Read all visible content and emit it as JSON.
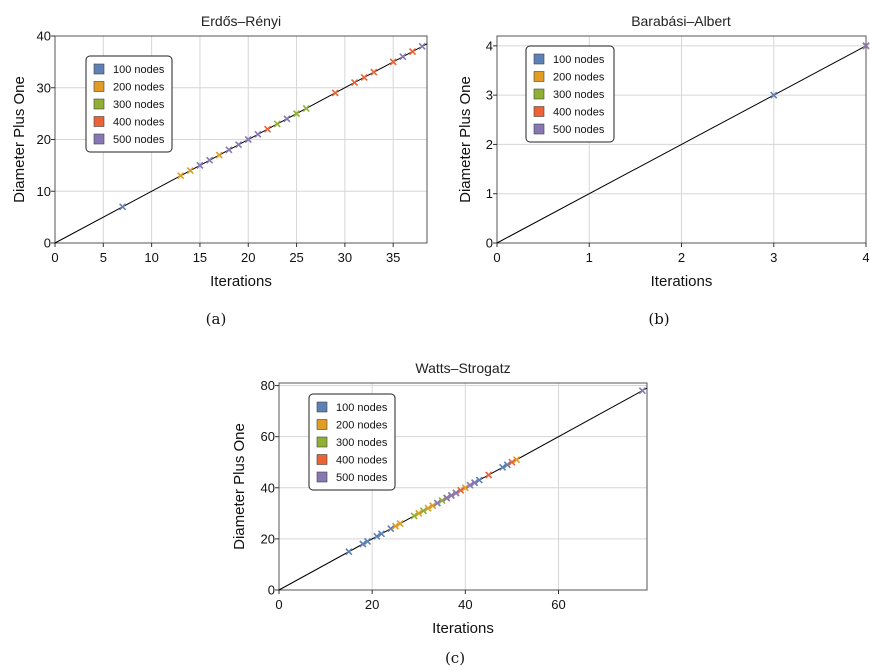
{
  "chart_data": [
    {
      "type": "scatter",
      "title": "Erdős–Rényi",
      "xlabel": "Iterations",
      "ylabel": "Diameter Plus One",
      "caption": "(a)",
      "xlim": [
        0,
        38.5
      ],
      "ylim": [
        0,
        40
      ],
      "xticks": [
        0,
        5,
        10,
        15,
        20,
        25,
        30,
        35
      ],
      "yticks": [
        0,
        10,
        20,
        30,
        40
      ],
      "grid": true,
      "reference_line": "y = x",
      "legend_position": "top-left",
      "series": [
        {
          "name": "100 nodes",
          "x": [
            7
          ],
          "y": [
            7
          ]
        },
        {
          "name": "200 nodes",
          "x": [
            13,
            14,
            17
          ],
          "y": [
            13,
            14,
            17
          ]
        },
        {
          "name": "300 nodes",
          "x": [
            23,
            25,
            26
          ],
          "y": [
            23,
            25,
            26
          ]
        },
        {
          "name": "400 nodes",
          "x": [
            22,
            29,
            31,
            32,
            33,
            35,
            37
          ],
          "y": [
            22,
            29,
            31,
            32,
            33,
            35,
            37
          ]
        },
        {
          "name": "500 nodes",
          "x": [
            15,
            16,
            18,
            19,
            20,
            21,
            24,
            36,
            38
          ],
          "y": [
            15,
            16,
            18,
            19,
            20,
            21,
            24,
            36,
            38
          ]
        }
      ]
    },
    {
      "type": "scatter",
      "title": "Barabási–Albert",
      "xlabel": "Iterations",
      "ylabel": "Diameter Plus One",
      "caption": "(b)",
      "xlim": [
        0,
        4
      ],
      "ylim": [
        0,
        4.2
      ],
      "xticks": [
        0,
        1,
        2,
        3,
        4
      ],
      "yticks": [
        0,
        1,
        2,
        3,
        4
      ],
      "grid": true,
      "reference_line": "y = x",
      "legend_position": "top-left",
      "series": [
        {
          "name": "100 nodes",
          "x": [
            3
          ],
          "y": [
            3
          ]
        },
        {
          "name": "200 nodes",
          "x": [
            4
          ],
          "y": [
            4
          ]
        },
        {
          "name": "300 nodes",
          "x": [
            4
          ],
          "y": [
            4
          ]
        },
        {
          "name": "400 nodes",
          "x": [
            4
          ],
          "y": [
            4
          ]
        },
        {
          "name": "500 nodes",
          "x": [
            4
          ],
          "y": [
            4
          ]
        }
      ]
    },
    {
      "type": "scatter",
      "title": "Watts–Strogatz",
      "xlabel": "Iterations",
      "ylabel": "Diameter Plus One",
      "caption": "(c)",
      "xlim": [
        0,
        79
      ],
      "ylim": [
        0,
        81
      ],
      "xticks": [
        0,
        20,
        40,
        60
      ],
      "yticks": [
        0,
        20,
        40,
        60,
        80
      ],
      "grid": true,
      "reference_line": "y = x",
      "legend_position": "top-left",
      "series": [
        {
          "name": "100 nodes",
          "x": [
            15,
            18,
            19,
            21,
            22,
            24,
            42,
            43,
            48,
            49
          ],
          "y": [
            15,
            18,
            19,
            21,
            22,
            24,
            42,
            43,
            48,
            49
          ]
        },
        {
          "name": "200 nodes",
          "x": [
            25,
            26,
            30,
            32,
            33,
            37,
            38,
            40,
            51
          ],
          "y": [
            25,
            26,
            30,
            32,
            33,
            37,
            38,
            40,
            51
          ]
        },
        {
          "name": "300 nodes",
          "x": [
            29,
            31,
            34,
            35
          ],
          "y": [
            29,
            31,
            34,
            35
          ]
        },
        {
          "name": "400 nodes",
          "x": [
            36,
            39,
            45,
            50
          ],
          "y": [
            36,
            39,
            45,
            50
          ]
        },
        {
          "name": "500 nodes",
          "x": [
            34,
            36,
            37,
            38,
            41,
            42,
            78
          ],
          "y": [
            34,
            36,
            37,
            38,
            41,
            42,
            78
          ]
        }
      ]
    }
  ],
  "colors": {
    "100 nodes": "#5e81b5",
    "200 nodes": "#e19c24",
    "300 nodes": "#8fb032",
    "400 nodes": "#eb6235",
    "500 nodes": "#8778b3",
    "reference_line": "#000000",
    "grid": "#d6d6d6",
    "frame": "#555555"
  }
}
